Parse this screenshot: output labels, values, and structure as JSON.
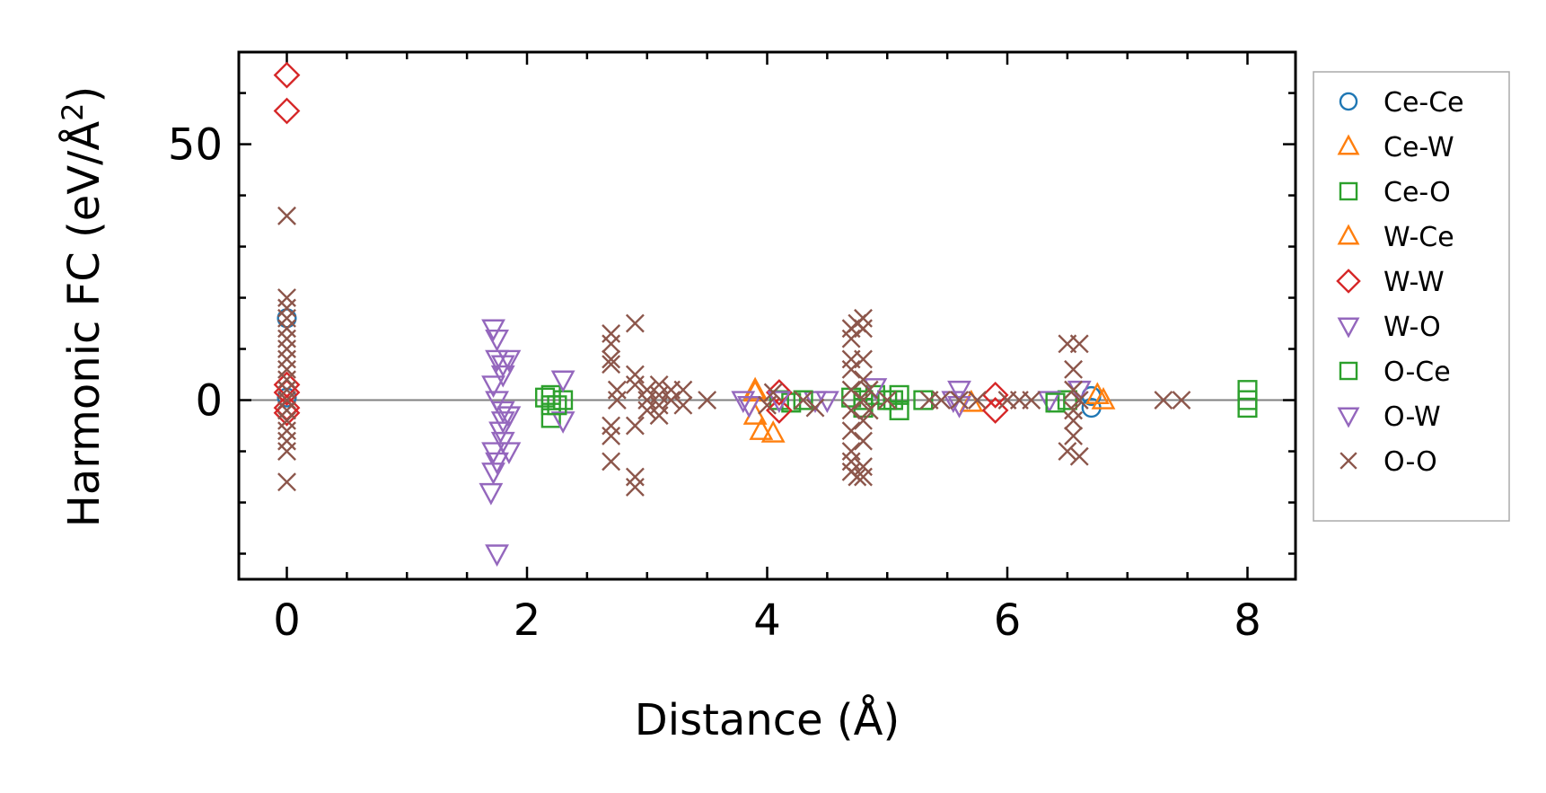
{
  "chart_data": {
    "type": "scatter",
    "title": "",
    "xlabel": "Distance (Å)",
    "ylabel_main": "Harmonic FC (eV/Å",
    "ylabel_sup": "2",
    "ylabel_close": ")",
    "xlim": [
      -0.4,
      8.4
    ],
    "ylim": [
      -35,
      68
    ],
    "xticks": [
      0,
      2,
      4,
      6,
      8
    ],
    "xtick_labels": [
      "0",
      "2",
      "4",
      "6",
      "8"
    ],
    "yticks": [
      0,
      50
    ],
    "ytick_labels": [
      "0",
      "50"
    ],
    "x_minor_step": 0.5,
    "y_minor_step": 10,
    "zero_line": true,
    "grid": false,
    "legend_position": "right",
    "series": [
      {
        "name": "Ce-Ce",
        "marker": "circle",
        "color": "#1f77b4",
        "points": [
          [
            0,
            16
          ],
          [
            0,
            0.5
          ],
          [
            6.7,
            0.8
          ],
          [
            6.7,
            -1.5
          ]
        ]
      },
      {
        "name": "Ce-W",
        "marker": "triangle-up",
        "color": "#ff7f0e",
        "points": [
          [
            3.9,
            1.5
          ],
          [
            3.9,
            -3
          ],
          [
            3.95,
            -6
          ],
          [
            4.05,
            -6.5
          ],
          [
            6.8,
            0
          ],
          [
            5.7,
            -0.5
          ]
        ]
      },
      {
        "name": "Ce-O",
        "marker": "square",
        "color": "#2ca02c",
        "points": [
          [
            2.2,
            1
          ],
          [
            2.2,
            -1
          ],
          [
            2.2,
            -3.5
          ],
          [
            2.3,
            0
          ],
          [
            4.1,
            0
          ],
          [
            4.2,
            -0.5
          ],
          [
            4.7,
            0.5
          ],
          [
            4.8,
            -1.5
          ],
          [
            4.9,
            1
          ],
          [
            5.0,
            0
          ],
          [
            5.1,
            1
          ],
          [
            5.1,
            -2
          ],
          [
            5.3,
            0
          ],
          [
            6.5,
            0
          ],
          [
            8.0,
            2
          ],
          [
            8.0,
            0
          ],
          [
            8.0,
            -1.5
          ]
        ]
      },
      {
        "name": "W-Ce",
        "marker": "triangle-up",
        "color": "#ff7f0e",
        "points": [
          [
            3.9,
            2
          ],
          [
            6.75,
            1
          ]
        ]
      },
      {
        "name": "W-W",
        "marker": "diamond",
        "color": "#d62728",
        "points": [
          [
            0,
            63.5
          ],
          [
            0,
            56.5
          ],
          [
            0,
            3
          ],
          [
            0,
            1.5
          ],
          [
            0,
            -1.5
          ],
          [
            0,
            -2.5
          ],
          [
            4.1,
            1.5
          ],
          [
            4.1,
            -2
          ],
          [
            5.9,
            1
          ],
          [
            5.9,
            -2
          ]
        ]
      },
      {
        "name": "W-O",
        "marker": "triangle-down",
        "color": "#9467bd",
        "points": [
          [
            1.72,
            14
          ],
          [
            1.75,
            12
          ],
          [
            1.75,
            8
          ],
          [
            1.8,
            7
          ],
          [
            1.8,
            5
          ],
          [
            1.72,
            3
          ],
          [
            1.75,
            0
          ],
          [
            1.8,
            -2
          ],
          [
            1.8,
            -4
          ],
          [
            1.78,
            -6
          ],
          [
            1.8,
            -8
          ],
          [
            1.72,
            -10
          ],
          [
            1.75,
            -12
          ],
          [
            1.72,
            -14
          ],
          [
            1.7,
            -18
          ],
          [
            1.75,
            -30
          ],
          [
            2.3,
            4
          ],
          [
            2.3,
            -4
          ],
          [
            3.8,
            0
          ],
          [
            4.1,
            0
          ],
          [
            4.4,
            0
          ],
          [
            4.9,
            2.5
          ],
          [
            5.6,
            2
          ],
          [
            5.6,
            -1
          ],
          [
            6.35,
            0
          ]
        ]
      },
      {
        "name": "O-Ce",
        "marker": "square",
        "color": "#2ca02c",
        "points": [
          [
            2.15,
            0.5
          ],
          [
            2.25,
            -1
          ],
          [
            4.3,
            0
          ],
          [
            4.8,
            0
          ],
          [
            5.05,
            0
          ],
          [
            6.4,
            -0.5
          ]
        ]
      },
      {
        "name": "O-W",
        "marker": "triangle-down",
        "color": "#9467bd",
        "points": [
          [
            1.85,
            8
          ],
          [
            1.85,
            -3
          ],
          [
            1.85,
            -10
          ],
          [
            3.85,
            -1
          ],
          [
            4.5,
            0
          ],
          [
            5.55,
            0
          ],
          [
            6.6,
            2
          ]
        ]
      },
      {
        "name": "O-O",
        "marker": "x",
        "color": "#8c564b",
        "points": [
          [
            0,
            36
          ],
          [
            0,
            20
          ],
          [
            0,
            18
          ],
          [
            0,
            16
          ],
          [
            0,
            14
          ],
          [
            0,
            12
          ],
          [
            0,
            10
          ],
          [
            0,
            8
          ],
          [
            0,
            6
          ],
          [
            0,
            4
          ],
          [
            0,
            2
          ],
          [
            0,
            0
          ],
          [
            0,
            -2
          ],
          [
            0,
            -4
          ],
          [
            0,
            -6
          ],
          [
            0,
            -8
          ],
          [
            0,
            -10
          ],
          [
            0,
            -16
          ],
          [
            2.7,
            13
          ],
          [
            2.7,
            11
          ],
          [
            2.7,
            8
          ],
          [
            2.7,
            7
          ],
          [
            2.75,
            2
          ],
          [
            2.75,
            0
          ],
          [
            2.7,
            -5
          ],
          [
            2.7,
            -7
          ],
          [
            2.7,
            -12
          ],
          [
            2.9,
            15
          ],
          [
            2.9,
            5
          ],
          [
            2.9,
            3
          ],
          [
            2.9,
            -5
          ],
          [
            2.9,
            -15
          ],
          [
            2.9,
            -17
          ],
          [
            3.0,
            2
          ],
          [
            3.0,
            0
          ],
          [
            3.0,
            -2
          ],
          [
            3.1,
            3
          ],
          [
            3.1,
            1
          ],
          [
            3.1,
            -1
          ],
          [
            3.1,
            -3
          ],
          [
            3.2,
            2
          ],
          [
            3.2,
            0
          ],
          [
            3.3,
            2
          ],
          [
            3.3,
            -1
          ],
          [
            3.5,
            0
          ],
          [
            4.0,
            -1
          ],
          [
            4.05,
            1.5
          ],
          [
            4.3,
            0
          ],
          [
            4.4,
            -1.5
          ],
          [
            4.7,
            14
          ],
          [
            4.7,
            12
          ],
          [
            4.7,
            8
          ],
          [
            4.7,
            6
          ],
          [
            4.7,
            2
          ],
          [
            4.7,
            -2
          ],
          [
            4.7,
            -6
          ],
          [
            4.7,
            -10
          ],
          [
            4.7,
            -12
          ],
          [
            4.7,
            -14
          ],
          [
            4.75,
            15
          ],
          [
            4.75,
            -15
          ],
          [
            4.8,
            16
          ],
          [
            4.8,
            14
          ],
          [
            4.8,
            8
          ],
          [
            4.8,
            4
          ],
          [
            4.8,
            0
          ],
          [
            4.8,
            -4
          ],
          [
            4.8,
            -8
          ],
          [
            4.8,
            -13
          ],
          [
            4.8,
            -15
          ],
          [
            4.85,
            2
          ],
          [
            4.85,
            -2
          ],
          [
            5.0,
            0
          ],
          [
            5.35,
            0
          ],
          [
            5.45,
            0
          ],
          [
            5.6,
            0
          ],
          [
            5.75,
            0
          ],
          [
            6.0,
            0
          ],
          [
            6.1,
            0
          ],
          [
            6.2,
            0
          ],
          [
            6.5,
            11
          ],
          [
            6.5,
            -10
          ],
          [
            6.55,
            6
          ],
          [
            6.55,
            2
          ],
          [
            6.55,
            -2
          ],
          [
            6.55,
            -4
          ],
          [
            6.55,
            -7
          ],
          [
            6.6,
            11
          ],
          [
            6.6,
            -11
          ],
          [
            6.6,
            0
          ],
          [
            7.3,
            0
          ],
          [
            7.45,
            0
          ]
        ]
      }
    ]
  }
}
